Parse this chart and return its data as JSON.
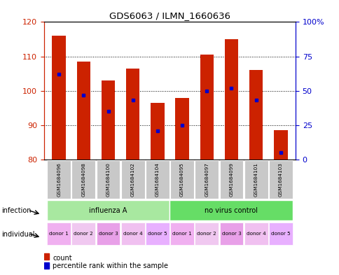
{
  "title": "GDS6063 / ILMN_1660636",
  "samples": [
    "GSM1684096",
    "GSM1684098",
    "GSM1684100",
    "GSM1684102",
    "GSM1684104",
    "GSM1684095",
    "GSM1684097",
    "GSM1684099",
    "GSM1684101",
    "GSM1684103"
  ],
  "counts": [
    116,
    108.5,
    103,
    106.5,
    96.5,
    98,
    110.5,
    115,
    106,
    88.5
  ],
  "percentile_ranks": [
    62,
    47,
    35,
    43,
    21,
    25,
    50,
    52,
    43,
    5
  ],
  "ylim_left": [
    80,
    120
  ],
  "ylim_right": [
    0,
    100
  ],
  "yticks_left": [
    80,
    90,
    100,
    110,
    120
  ],
  "yticks_right": [
    0,
    25,
    50,
    75,
    100
  ],
  "infection_groups": [
    {
      "label": "influenza A",
      "start": 0,
      "end": 5,
      "color": "#a8e8a0"
    },
    {
      "label": "no virus control",
      "start": 5,
      "end": 10,
      "color": "#66dd66"
    }
  ],
  "individuals": [
    "donor 1",
    "donor 2",
    "donor 3",
    "donor 4",
    "donor 5",
    "donor 1",
    "donor 2",
    "donor 3",
    "donor 4",
    "donor 5"
  ],
  "individual_colors": [
    "#f0b0f0",
    "#f0c8f0",
    "#e8a0e8",
    "#f0c0f0",
    "#e8b0ff",
    "#f0b0f0",
    "#f0c8f0",
    "#e8a0e8",
    "#f0c0f0",
    "#e8b0ff"
  ],
  "bar_color": "#cc2200",
  "dot_color": "#0000cc",
  "bar_bottom": 80,
  "bar_width": 0.55,
  "legend_count_color": "#cc2200",
  "legend_dot_color": "#0000cc",
  "axis_label_color_left": "#cc2200",
  "axis_label_color_right": "#0000cc",
  "sample_bg": "#c8c8c8"
}
